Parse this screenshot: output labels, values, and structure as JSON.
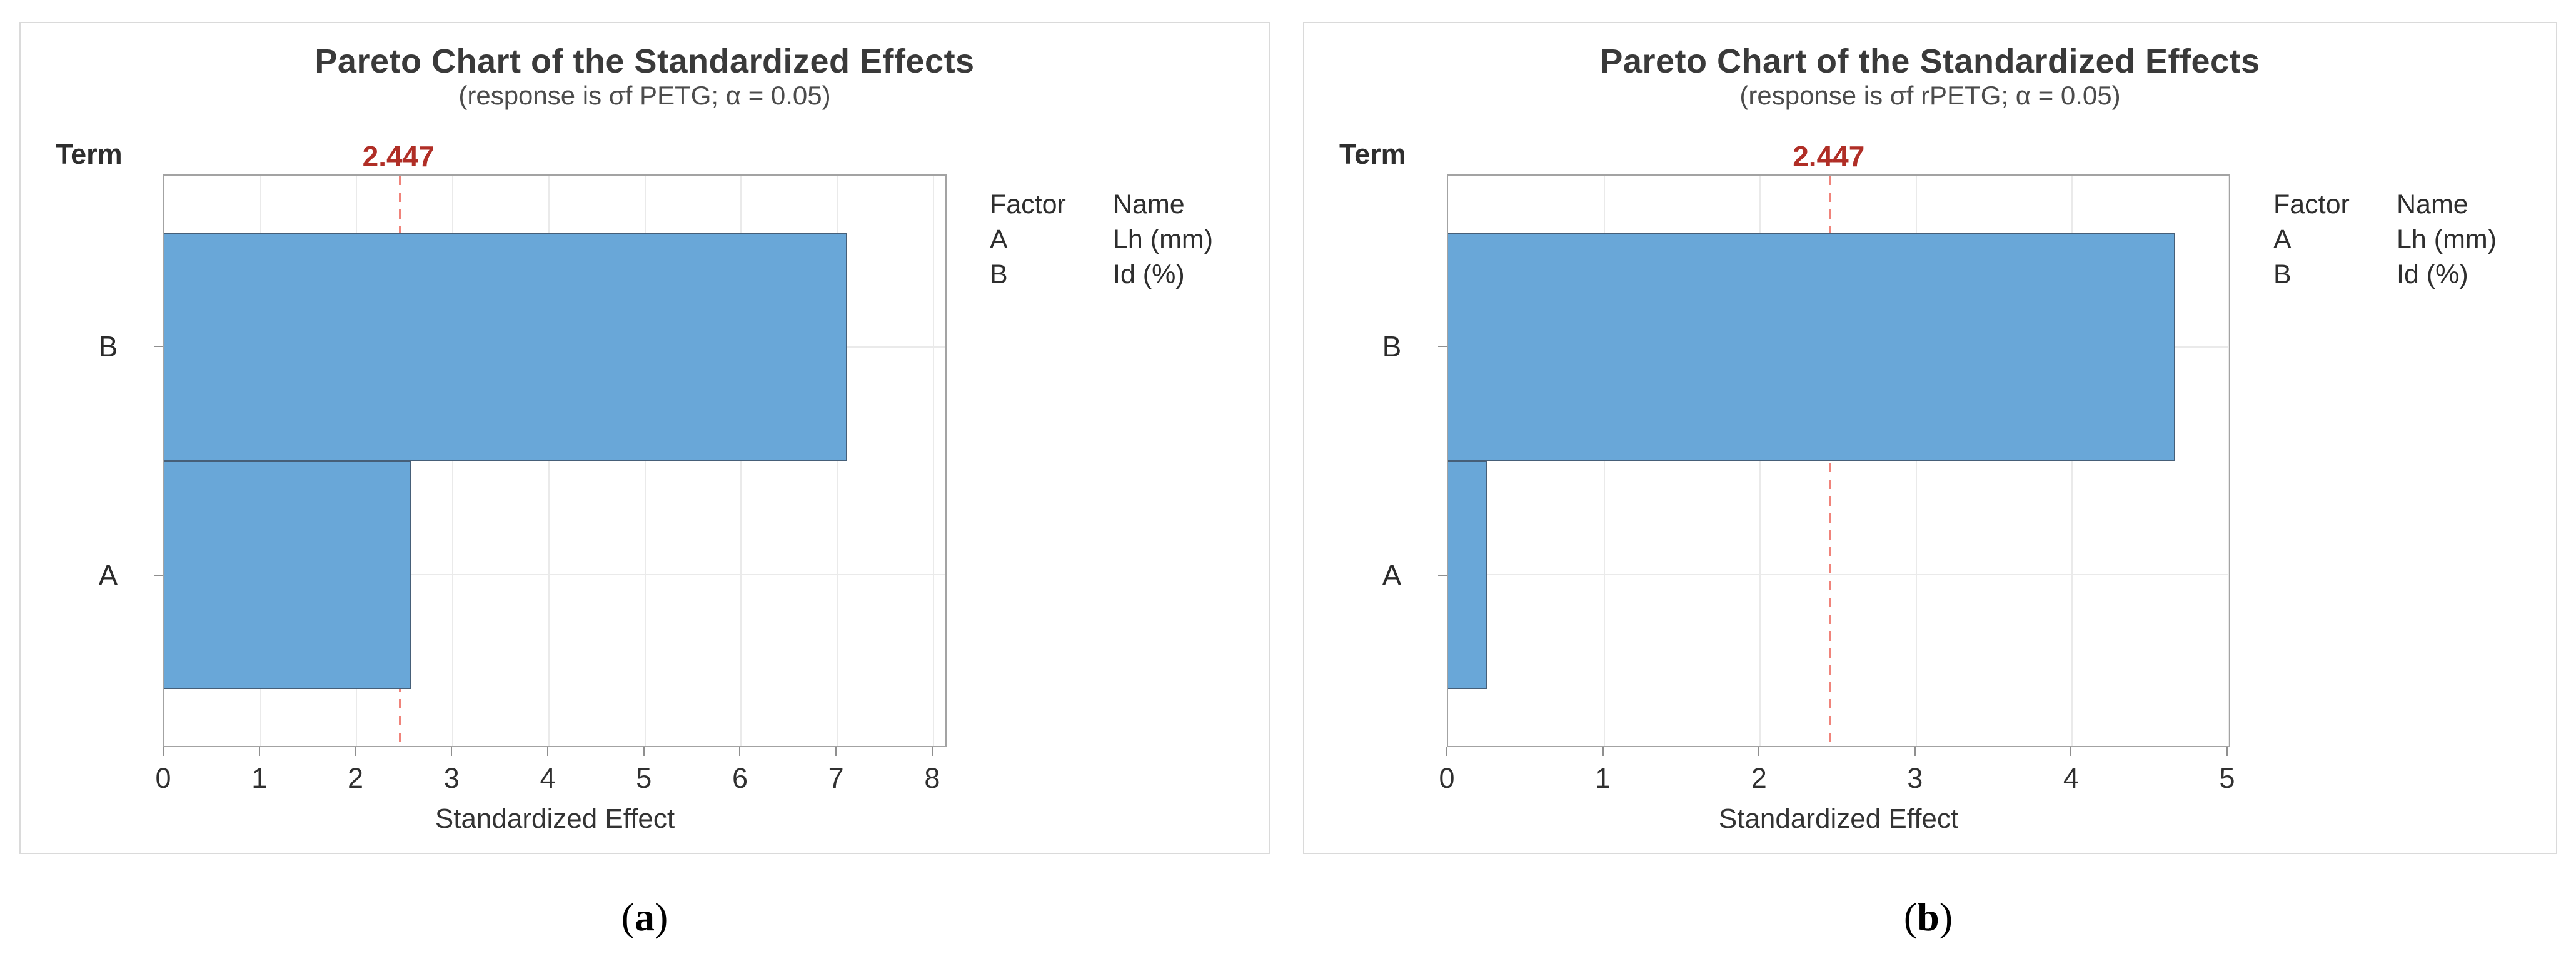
{
  "figure": {
    "background": "#FFFFFF"
  },
  "chart_data": [
    {
      "type": "bar",
      "orientation": "horizontal",
      "panel_letter": "a",
      "panel_label_prefix": "(",
      "panel_label_suffix": ")",
      "title": "Pareto Chart of the Standardized Effects",
      "subtitle": "(response is σf PETG; α = 0.05)",
      "y_axis_title": "Term",
      "xlabel": "Standardized Effect",
      "categories": [
        "B",
        "A"
      ],
      "values": [
        7.1,
        2.56
      ],
      "x_ticks": [
        0,
        1,
        2,
        3,
        4,
        5,
        6,
        7,
        8
      ],
      "x_axis_max": 8.15,
      "grid": true,
      "legend_position": "right",
      "reference_line": {
        "value": 2.447,
        "label": "2.447"
      },
      "legend": {
        "headers": [
          "Factor",
          "Name"
        ],
        "rows": [
          [
            "A",
            "Lh (mm)"
          ],
          [
            "B",
            "Id (%)"
          ]
        ]
      }
    },
    {
      "type": "bar",
      "orientation": "horizontal",
      "panel_letter": "b",
      "panel_label_prefix": "(",
      "panel_label_suffix": ")",
      "title": "Pareto Chart of the Standardized Effects",
      "subtitle": "(response is σf rPETG; α = 0.05)",
      "y_axis_title": "Term",
      "xlabel": "Standardized Effect",
      "categories": [
        "B",
        "A"
      ],
      "values": [
        4.66,
        0.25
      ],
      "x_ticks": [
        0,
        1,
        2,
        3,
        4,
        5
      ],
      "x_axis_max": 5.02,
      "grid": true,
      "legend_position": "right",
      "reference_line": {
        "value": 2.447,
        "label": "2.447"
      },
      "legend": {
        "headers": [
          "Factor",
          "Name"
        ],
        "rows": [
          [
            "A",
            "Lh (mm)"
          ],
          [
            "B",
            "Id (%)"
          ]
        ]
      }
    }
  ],
  "colors": {
    "bar_fill": "#69A7D8",
    "bar_stroke": "#465F78",
    "reference_line": "#F0837A",
    "reference_label": "#B02E26",
    "plot_frame": "#A3A3A3",
    "gridline": "#EAEAEA",
    "tick_mark": "#8F8F8F",
    "text": "#3A3A3A",
    "subtitle_text": "#4C4C4C",
    "panel_border": "#DADADA",
    "background": "#FFFFFF"
  }
}
